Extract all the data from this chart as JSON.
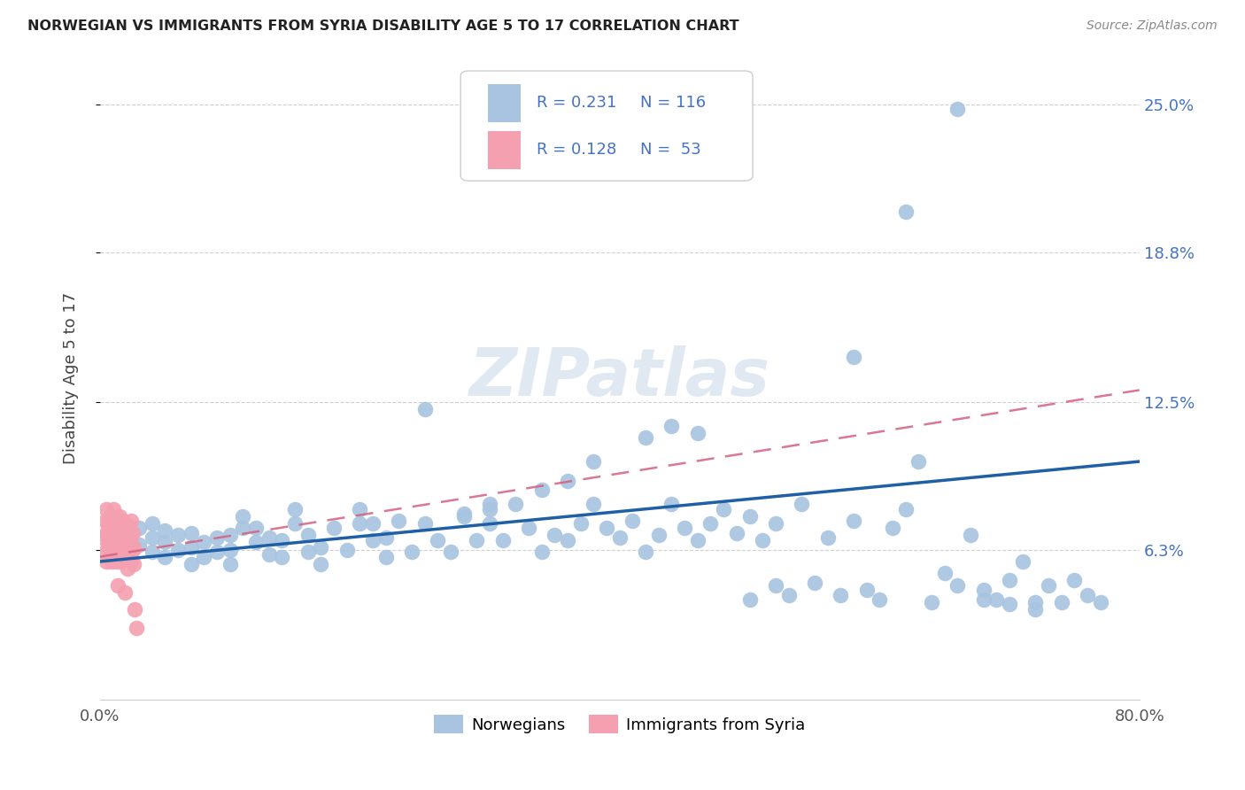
{
  "title": "NORWEGIAN VS IMMIGRANTS FROM SYRIA DISABILITY AGE 5 TO 17 CORRELATION CHART",
  "source": "Source: ZipAtlas.com",
  "ylabel": "Disability Age 5 to 17",
  "xlim": [
    0.0,
    0.8
  ],
  "ylim": [
    0.0,
    0.27
  ],
  "ytick_vals": [
    0.063,
    0.125,
    0.188,
    0.25
  ],
  "ytick_labels": [
    "6.3%",
    "12.5%",
    "18.8%",
    "25.0%"
  ],
  "xtick_vals": [
    0.0,
    0.1,
    0.2,
    0.3,
    0.4,
    0.5,
    0.6,
    0.7,
    0.8
  ],
  "xtick_labels": [
    "0.0%",
    "",
    "",
    "",
    "",
    "",
    "",
    "",
    "80.0%"
  ],
  "legend_r1": "R = 0.231",
  "legend_n1": "N = 116",
  "legend_r2": "R = 0.128",
  "legend_n2": "N =  53",
  "legend1_label": "Norwegians",
  "legend2_label": "Immigrants from Syria",
  "blue_color": "#a8c4e0",
  "blue_line_color": "#1f5fa6",
  "pink_color": "#f4a0b0",
  "pink_line_color": "#d46080",
  "watermark_color": "#c8d8e8",
  "blue_trend_x": [
    0.0,
    0.8
  ],
  "blue_trend_y": [
    0.058,
    0.1
  ],
  "pink_trend_x": [
    0.0,
    0.8
  ],
  "pink_trend_y": [
    0.06,
    0.13
  ],
  "norwegians_x": [
    0.02,
    0.03,
    0.03,
    0.04,
    0.04,
    0.04,
    0.05,
    0.05,
    0.05,
    0.06,
    0.06,
    0.07,
    0.07,
    0.07,
    0.08,
    0.08,
    0.09,
    0.09,
    0.1,
    0.1,
    0.1,
    0.11,
    0.11,
    0.12,
    0.12,
    0.13,
    0.13,
    0.14,
    0.14,
    0.15,
    0.15,
    0.16,
    0.16,
    0.17,
    0.17,
    0.18,
    0.19,
    0.2,
    0.2,
    0.21,
    0.21,
    0.22,
    0.22,
    0.23,
    0.24,
    0.25,
    0.25,
    0.26,
    0.27,
    0.28,
    0.29,
    0.3,
    0.3,
    0.31,
    0.32,
    0.33,
    0.34,
    0.35,
    0.36,
    0.37,
    0.38,
    0.39,
    0.4,
    0.41,
    0.42,
    0.43,
    0.44,
    0.45,
    0.46,
    0.47,
    0.48,
    0.49,
    0.5,
    0.51,
    0.52,
    0.53,
    0.54,
    0.55,
    0.56,
    0.57,
    0.58,
    0.59,
    0.6,
    0.61,
    0.62,
    0.63,
    0.64,
    0.65,
    0.66,
    0.67,
    0.68,
    0.69,
    0.7,
    0.71,
    0.72,
    0.73,
    0.74,
    0.75,
    0.76,
    0.77,
    0.36,
    0.38,
    0.42,
    0.44,
    0.28,
    0.3,
    0.34,
    0.46,
    0.5,
    0.52,
    0.58,
    0.62,
    0.66,
    0.68,
    0.7,
    0.72
  ],
  "norwegians_y": [
    0.068,
    0.065,
    0.072,
    0.062,
    0.068,
    0.074,
    0.06,
    0.066,
    0.071,
    0.063,
    0.069,
    0.057,
    0.064,
    0.07,
    0.06,
    0.066,
    0.062,
    0.068,
    0.057,
    0.063,
    0.069,
    0.072,
    0.077,
    0.066,
    0.072,
    0.061,
    0.068,
    0.06,
    0.067,
    0.074,
    0.08,
    0.062,
    0.069,
    0.057,
    0.064,
    0.072,
    0.063,
    0.074,
    0.08,
    0.067,
    0.074,
    0.06,
    0.068,
    0.075,
    0.062,
    0.122,
    0.074,
    0.067,
    0.062,
    0.077,
    0.067,
    0.074,
    0.08,
    0.067,
    0.082,
    0.072,
    0.062,
    0.069,
    0.067,
    0.074,
    0.082,
    0.072,
    0.068,
    0.075,
    0.062,
    0.069,
    0.082,
    0.072,
    0.067,
    0.074,
    0.08,
    0.07,
    0.077,
    0.067,
    0.074,
    0.044,
    0.082,
    0.049,
    0.068,
    0.044,
    0.075,
    0.046,
    0.042,
    0.072,
    0.08,
    0.1,
    0.041,
    0.053,
    0.048,
    0.069,
    0.046,
    0.042,
    0.05,
    0.058,
    0.041,
    0.048,
    0.041,
    0.05,
    0.044,
    0.041,
    0.092,
    0.1,
    0.11,
    0.115,
    0.078,
    0.082,
    0.088,
    0.112,
    0.042,
    0.048,
    0.144,
    0.205,
    0.248,
    0.042,
    0.04,
    0.038
  ],
  "syria_x": [
    0.003,
    0.004,
    0.004,
    0.005,
    0.005,
    0.005,
    0.006,
    0.006,
    0.007,
    0.007,
    0.007,
    0.008,
    0.008,
    0.008,
    0.009,
    0.009,
    0.01,
    0.01,
    0.01,
    0.011,
    0.011,
    0.012,
    0.012,
    0.013,
    0.013,
    0.014,
    0.014,
    0.015,
    0.015,
    0.016,
    0.016,
    0.017,
    0.017,
    0.018,
    0.018,
    0.019,
    0.019,
    0.02,
    0.02,
    0.021,
    0.021,
    0.022,
    0.022,
    0.023,
    0.023,
    0.024,
    0.024,
    0.025,
    0.025,
    0.026,
    0.026,
    0.027,
    0.028
  ],
  "syria_y": [
    0.068,
    0.062,
    0.075,
    0.058,
    0.07,
    0.08,
    0.065,
    0.073,
    0.06,
    0.068,
    0.075,
    0.062,
    0.07,
    0.077,
    0.065,
    0.058,
    0.063,
    0.072,
    0.08,
    0.067,
    0.06,
    0.074,
    0.068,
    0.058,
    0.066,
    0.073,
    0.048,
    0.063,
    0.077,
    0.068,
    0.058,
    0.071,
    0.062,
    0.068,
    0.075,
    0.063,
    0.045,
    0.07,
    0.06,
    0.068,
    0.055,
    0.073,
    0.063,
    0.06,
    0.068,
    0.075,
    0.058,
    0.063,
    0.07,
    0.057,
    0.064,
    0.038,
    0.03
  ]
}
